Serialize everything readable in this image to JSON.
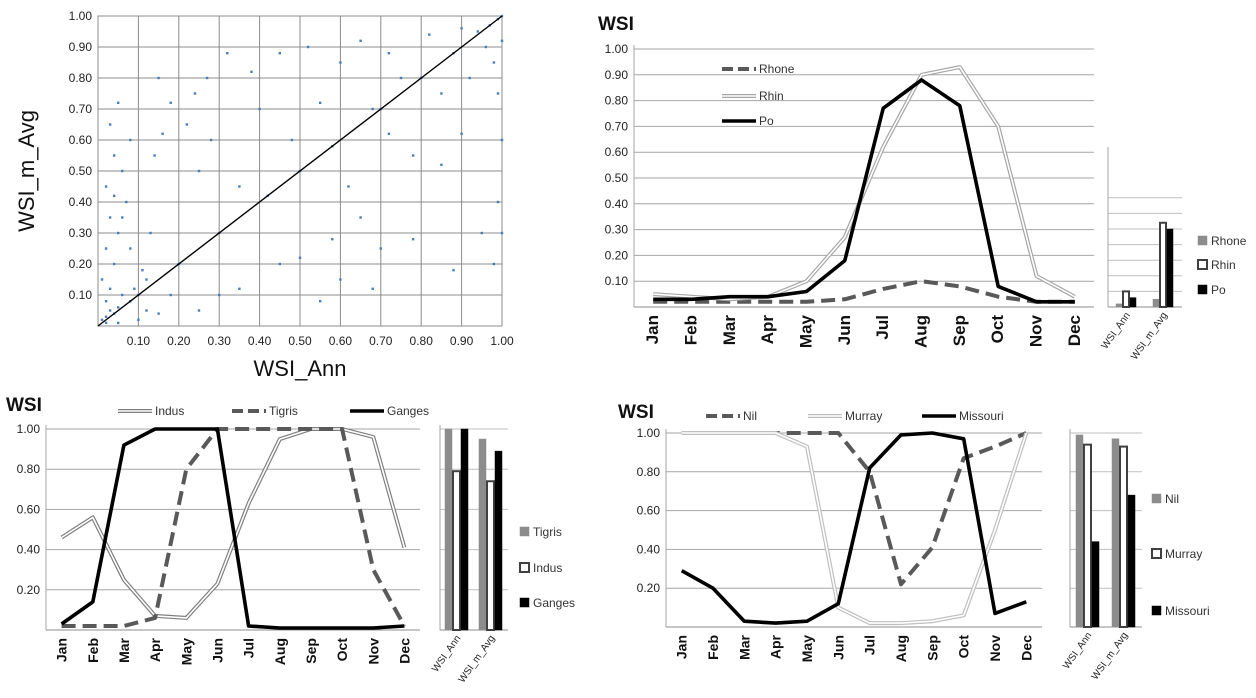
{
  "chart_data": [
    {
      "id": "scatter",
      "type": "scatter",
      "title": "",
      "xlabel": "WSI_Ann",
      "ylabel": "WSI_m_Avg",
      "xlim": [
        0,
        1
      ],
      "ylim": [
        0,
        1
      ],
      "xticks": [
        "0.10",
        "0.20",
        "0.30",
        "0.40",
        "0.50",
        "0.60",
        "0.70",
        "0.80",
        "0.90",
        "1.00"
      ],
      "yticks": [
        "0.10",
        "0.20",
        "0.30",
        "0.40",
        "0.50",
        "0.60",
        "0.70",
        "0.80",
        "0.90",
        "1.00"
      ],
      "grid": true,
      "point_color": "#4a7ebb",
      "diagonal_line": [
        [
          0,
          0
        ],
        [
          1,
          1
        ]
      ],
      "points": [
        [
          0.01,
          0.02
        ],
        [
          0.02,
          0.03
        ],
        [
          0.02,
          0.08
        ],
        [
          0.03,
          0.05
        ],
        [
          0.03,
          0.12
        ],
        [
          0.04,
          0.04
        ],
        [
          0.04,
          0.2
        ],
        [
          0.05,
          0.06
        ],
        [
          0.05,
          0.3
        ],
        [
          0.06,
          0.1
        ],
        [
          0.01,
          0.15
        ],
        [
          0.02,
          0.25
        ],
        [
          0.03,
          0.35
        ],
        [
          0.02,
          0.45
        ],
        [
          0.04,
          0.55
        ],
        [
          0.03,
          0.65
        ],
        [
          0.05,
          0.72
        ],
        [
          0.06,
          0.5
        ],
        [
          0.07,
          0.4
        ],
        [
          0.08,
          0.6
        ],
        [
          0.08,
          0.08
        ],
        [
          0.09,
          0.12
        ],
        [
          0.1,
          0.1
        ],
        [
          0.11,
          0.18
        ],
        [
          0.12,
          0.15
        ],
        [
          0.13,
          0.3
        ],
        [
          0.14,
          0.55
        ],
        [
          0.15,
          0.8
        ],
        [
          0.16,
          0.62
        ],
        [
          0.18,
          0.72
        ],
        [
          0.2,
          0.2
        ],
        [
          0.22,
          0.65
        ],
        [
          0.24,
          0.75
        ],
        [
          0.25,
          0.5
        ],
        [
          0.27,
          0.8
        ],
        [
          0.28,
          0.6
        ],
        [
          0.3,
          0.3
        ],
        [
          0.32,
          0.88
        ],
        [
          0.35,
          0.45
        ],
        [
          0.38,
          0.82
        ],
        [
          0.4,
          0.7
        ],
        [
          0.42,
          0.42
        ],
        [
          0.45,
          0.88
        ],
        [
          0.48,
          0.6
        ],
        [
          0.5,
          0.5
        ],
        [
          0.52,
          0.9
        ],
        [
          0.55,
          0.72
        ],
        [
          0.58,
          0.58
        ],
        [
          0.6,
          0.85
        ],
        [
          0.62,
          0.45
        ],
        [
          0.65,
          0.92
        ],
        [
          0.68,
          0.7
        ],
        [
          0.7,
          0.7
        ],
        [
          0.72,
          0.88
        ],
        [
          0.75,
          0.8
        ],
        [
          0.78,
          0.55
        ],
        [
          0.8,
          0.8
        ],
        [
          0.82,
          0.94
        ],
        [
          0.85,
          0.75
        ],
        [
          0.88,
          0.88
        ],
        [
          0.9,
          0.96
        ],
        [
          0.92,
          0.8
        ],
        [
          0.94,
          0.95
        ],
        [
          0.96,
          0.9
        ],
        [
          0.97,
          0.97
        ],
        [
          0.98,
          0.85
        ],
        [
          0.99,
          0.99
        ],
        [
          1.0,
          1.0
        ],
        [
          1.0,
          0.92
        ],
        [
          0.99,
          0.75
        ],
        [
          1.0,
          0.6
        ],
        [
          0.99,
          0.4
        ],
        [
          1.0,
          0.3
        ],
        [
          0.98,
          0.2
        ],
        [
          0.7,
          0.25
        ],
        [
          0.6,
          0.15
        ],
        [
          0.55,
          0.08
        ],
        [
          0.35,
          0.12
        ],
        [
          0.3,
          0.1
        ],
        [
          0.45,
          0.2
        ],
        [
          0.25,
          0.05
        ],
        [
          0.15,
          0.04
        ],
        [
          0.1,
          0.02
        ],
        [
          0.05,
          0.01
        ],
        [
          0.02,
          0.01
        ],
        [
          0.12,
          0.05
        ],
        [
          0.18,
          0.1
        ],
        [
          0.08,
          0.25
        ],
        [
          0.06,
          0.35
        ],
        [
          0.04,
          0.42
        ],
        [
          0.72,
          0.62
        ],
        [
          0.9,
          0.62
        ],
        [
          0.85,
          0.52
        ],
        [
          0.65,
          0.35
        ],
        [
          0.95,
          0.3
        ],
        [
          0.78,
          0.28
        ],
        [
          0.88,
          0.18
        ],
        [
          0.68,
          0.12
        ],
        [
          0.58,
          0.28
        ],
        [
          0.5,
          0.22
        ]
      ]
    },
    {
      "id": "rhone",
      "type": "line",
      "title": "WSI",
      "categories": [
        "Jan",
        "Feb",
        "Mar",
        "Apr",
        "May",
        "Jun",
        "Jul",
        "Aug",
        "Sep",
        "Oct",
        "Nov",
        "Dec"
      ],
      "ylim": [
        0,
        1
      ],
      "yticks": [
        "0.10",
        "0.20",
        "0.30",
        "0.40",
        "0.50",
        "0.60",
        "0.70",
        "0.80",
        "0.90",
        "1.00"
      ],
      "legend_position": "top-left",
      "series": [
        {
          "name": "Rhone",
          "style": "dashed",
          "color": "#595959",
          "values": [
            0.02,
            0.02,
            0.02,
            0.02,
            0.02,
            0.03,
            0.07,
            0.1,
            0.08,
            0.04,
            0.02,
            0.02
          ]
        },
        {
          "name": "Rhin",
          "style": "double",
          "color": "#a6a6a6",
          "values": [
            0.05,
            0.04,
            0.03,
            0.04,
            0.1,
            0.27,
            0.62,
            0.9,
            0.93,
            0.7,
            0.12,
            0.04
          ]
        },
        {
          "name": "Po",
          "style": "solid",
          "color": "#000000",
          "values": [
            0.03,
            0.03,
            0.04,
            0.04,
            0.06,
            0.18,
            0.77,
            0.88,
            0.78,
            0.08,
            0.02,
            0.02
          ]
        }
      ],
      "bars": {
        "categories": [
          "WSI_Ann",
          "WSI_m_Avg"
        ],
        "ylim": [
          0,
          1
        ],
        "legend_position": "right",
        "legend": [
          "Rhone",
          "Rhin",
          "Po"
        ],
        "series": [
          {
            "name": "Rhone",
            "values": [
              0.02,
              0.05
            ]
          },
          {
            "name": "Rhin",
            "values": [
              0.1,
              0.54
            ]
          },
          {
            "name": "Po",
            "values": [
              0.06,
              0.5
            ]
          }
        ]
      }
    },
    {
      "id": "indus",
      "type": "line",
      "title": "WSI",
      "categories": [
        "Jan",
        "Feb",
        "Mar",
        "Apr",
        "May",
        "Jun",
        "Jul",
        "Aug",
        "Sep",
        "Oct",
        "Nov",
        "Dec"
      ],
      "ylim": [
        0,
        1
      ],
      "yticks": [
        "0.20",
        "0.40",
        "0.60",
        "0.80",
        "1.00"
      ],
      "legend_position": "top",
      "series": [
        {
          "name": "Indus",
          "style": "double",
          "color": "#7f7f7f",
          "values": [
            0.46,
            0.56,
            0.25,
            0.07,
            0.06,
            0.23,
            0.63,
            0.95,
            1.0,
            1.0,
            0.96,
            0.41
          ]
        },
        {
          "name": "Tigris",
          "style": "dashed",
          "color": "#595959",
          "values": [
            0.02,
            0.02,
            0.02,
            0.06,
            0.8,
            1.0,
            1.0,
            1.0,
            1.0,
            1.0,
            0.3,
            0.02
          ]
        },
        {
          "name": "Ganges",
          "style": "solid",
          "color": "#000000",
          "values": [
            0.03,
            0.14,
            0.92,
            1.0,
            1.0,
            1.0,
            0.02,
            0.01,
            0.01,
            0.01,
            0.01,
            0.02
          ]
        }
      ],
      "bars": {
        "categories": [
          "WSI_Ann",
          "WSI_m_Avg"
        ],
        "ylim": [
          0,
          1
        ],
        "legend_position": "right",
        "legend": [
          "Tigris",
          "Indus",
          "Ganges"
        ],
        "series": [
          {
            "name": "Tigris",
            "values": [
              1.0,
              0.95
            ]
          },
          {
            "name": "Indus",
            "values": [
              0.79,
              0.74
            ]
          },
          {
            "name": "Ganges",
            "values": [
              1.0,
              0.89
            ]
          }
        ]
      }
    },
    {
      "id": "nil",
      "type": "line",
      "title": "WSI",
      "categories": [
        "Jan",
        "Feb",
        "Mar",
        "Apr",
        "May",
        "Jun",
        "Jul",
        "Aug",
        "Sep",
        "Oct",
        "Nov",
        "Dec"
      ],
      "ylim": [
        0,
        1
      ],
      "yticks": [
        "0.20",
        "0.40",
        "0.60",
        "0.80",
        "1.00"
      ],
      "legend_position": "top",
      "series": [
        {
          "name": "Nil",
          "style": "dashed",
          "color": "#595959",
          "values": [
            1.0,
            1.0,
            1.0,
            1.0,
            1.0,
            1.0,
            0.8,
            0.22,
            0.41,
            0.87,
            0.93,
            1.0
          ]
        },
        {
          "name": "Murray",
          "style": "double",
          "color": "#bfbfbf",
          "values": [
            1.0,
            1.0,
            1.0,
            1.0,
            0.93,
            0.1,
            0.02,
            0.02,
            0.03,
            0.06,
            0.5,
            1.0
          ]
        },
        {
          "name": "Missouri",
          "style": "solid",
          "color": "#000000",
          "values": [
            0.29,
            0.2,
            0.03,
            0.02,
            0.03,
            0.12,
            0.82,
            0.99,
            1.0,
            0.97,
            0.07,
            0.13
          ]
        }
      ],
      "bars": {
        "categories": [
          "WSI_Ann",
          "WSI_m_Avg"
        ],
        "ylim": [
          0,
          1
        ],
        "legend_position": "right",
        "legend": [
          "Nil",
          "Murray",
          "Missouri"
        ],
        "series": [
          {
            "name": "Nil",
            "values": [
              0.99,
              0.97
            ]
          },
          {
            "name": "Murray",
            "values": [
              0.94,
              0.93
            ]
          },
          {
            "name": "Missouri",
            "values": [
              0.44,
              0.68
            ]
          }
        ]
      }
    }
  ]
}
